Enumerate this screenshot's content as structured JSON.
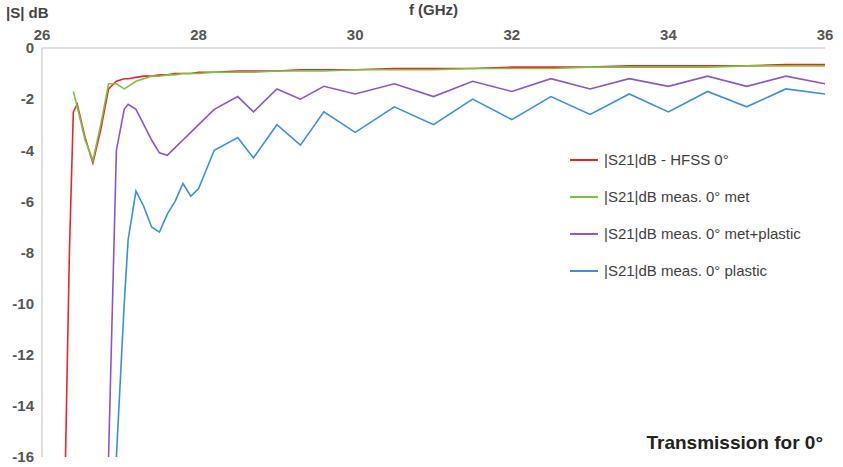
{
  "chart_data": {
    "type": "line",
    "title": "Transmission for 0°",
    "x_label": "f (GHz)",
    "y_label": "|S| dB",
    "x": [
      26.3,
      26.35,
      26.4,
      26.45,
      26.55,
      26.65,
      26.75,
      26.85,
      26.95,
      27.05,
      27.1,
      27.2,
      27.3,
      27.4,
      27.5,
      27.6,
      27.7,
      27.8,
      27.9,
      28,
      28.2,
      28.5,
      28.7,
      29,
      29.3,
      29.6,
      30,
      30.5,
      31,
      31.5,
      32,
      32.5,
      33,
      33.5,
      34,
      34.5,
      35,
      35.5,
      36
    ],
    "series": [
      {
        "name": "|S21|dB - HFSS 0°",
        "color": "#e8262b",
        "values": [
          -16,
          -8,
          -2.5,
          -2.2,
          -3.5,
          -4.5,
          -3.2,
          -1.6,
          -1.3,
          -1.2,
          -1.2,
          -1.15,
          -1.1,
          -1.1,
          -1.05,
          -1.05,
          -1,
          -1,
          -1,
          -0.95,
          -0.95,
          -0.9,
          -0.9,
          -0.9,
          -0.85,
          -0.85,
          -0.85,
          -0.8,
          -0.8,
          -0.8,
          -0.75,
          -0.75,
          -0.75,
          -0.7,
          -0.7,
          -0.7,
          -0.7,
          -0.65,
          -0.65
        ]
      },
      {
        "name": "|S21|dB meas. 0° met",
        "color": "#7cc242",
        "values": [
          null,
          null,
          -1.7,
          -2.3,
          -3.6,
          -4.4,
          -3,
          -1.4,
          -1.4,
          -1.6,
          -1.5,
          -1.3,
          -1.2,
          -1.1,
          -1.1,
          -1.05,
          -1.05,
          -1,
          -1,
          -1,
          -0.95,
          -0.95,
          -0.95,
          -0.9,
          -0.9,
          -0.9,
          -0.85,
          -0.85,
          -0.85,
          -0.8,
          -0.8,
          -0.8,
          -0.75,
          -0.75,
          -0.75,
          -0.75,
          -0.7,
          -0.7,
          -0.7
        ]
      },
      {
        "name": "|S21|dB meas. 0° met+plastic",
        "color": "#8e55c8",
        "values": [
          null,
          null,
          null,
          null,
          null,
          null,
          null,
          -16,
          -4,
          -2.4,
          -2.2,
          -2.4,
          -3,
          -3.6,
          -4.1,
          -4.2,
          -3.9,
          -3.6,
          -3.3,
          -3,
          -2.4,
          -1.9,
          -2.5,
          -1.6,
          -2,
          -1.5,
          -1.8,
          -1.4,
          -1.9,
          -1.3,
          -1.7,
          -1.2,
          -1.6,
          -1.2,
          -1.5,
          -1.1,
          -1.5,
          -1.1,
          -1.4
        ]
      },
      {
        "name": "|S21|dB meas. 0° plastic",
        "color": "#3a8fe0",
        "values": [
          null,
          null,
          null,
          null,
          null,
          null,
          null,
          null,
          -16,
          -10,
          -7.5,
          -5.6,
          -6.2,
          -7,
          -7.2,
          -6.5,
          -6,
          -5.3,
          -5.8,
          -5.5,
          -4,
          -3.5,
          -4.3,
          -3,
          -3.8,
          -2.5,
          -3.3,
          -2.3,
          -3,
          -2,
          -2.8,
          -1.9,
          -2.6,
          -1.8,
          -2.5,
          -1.7,
          -2.3,
          -1.6,
          -1.8
        ]
      }
    ],
    "xlim": [
      26,
      36
    ],
    "xticks": [
      26,
      28,
      30,
      32,
      34,
      36
    ],
    "ylim": [
      -16,
      0
    ],
    "yticks": [
      0,
      -2,
      -4,
      -6,
      -8,
      -10,
      -12,
      -14,
      -16
    ],
    "grid": false,
    "legend": "right"
  }
}
